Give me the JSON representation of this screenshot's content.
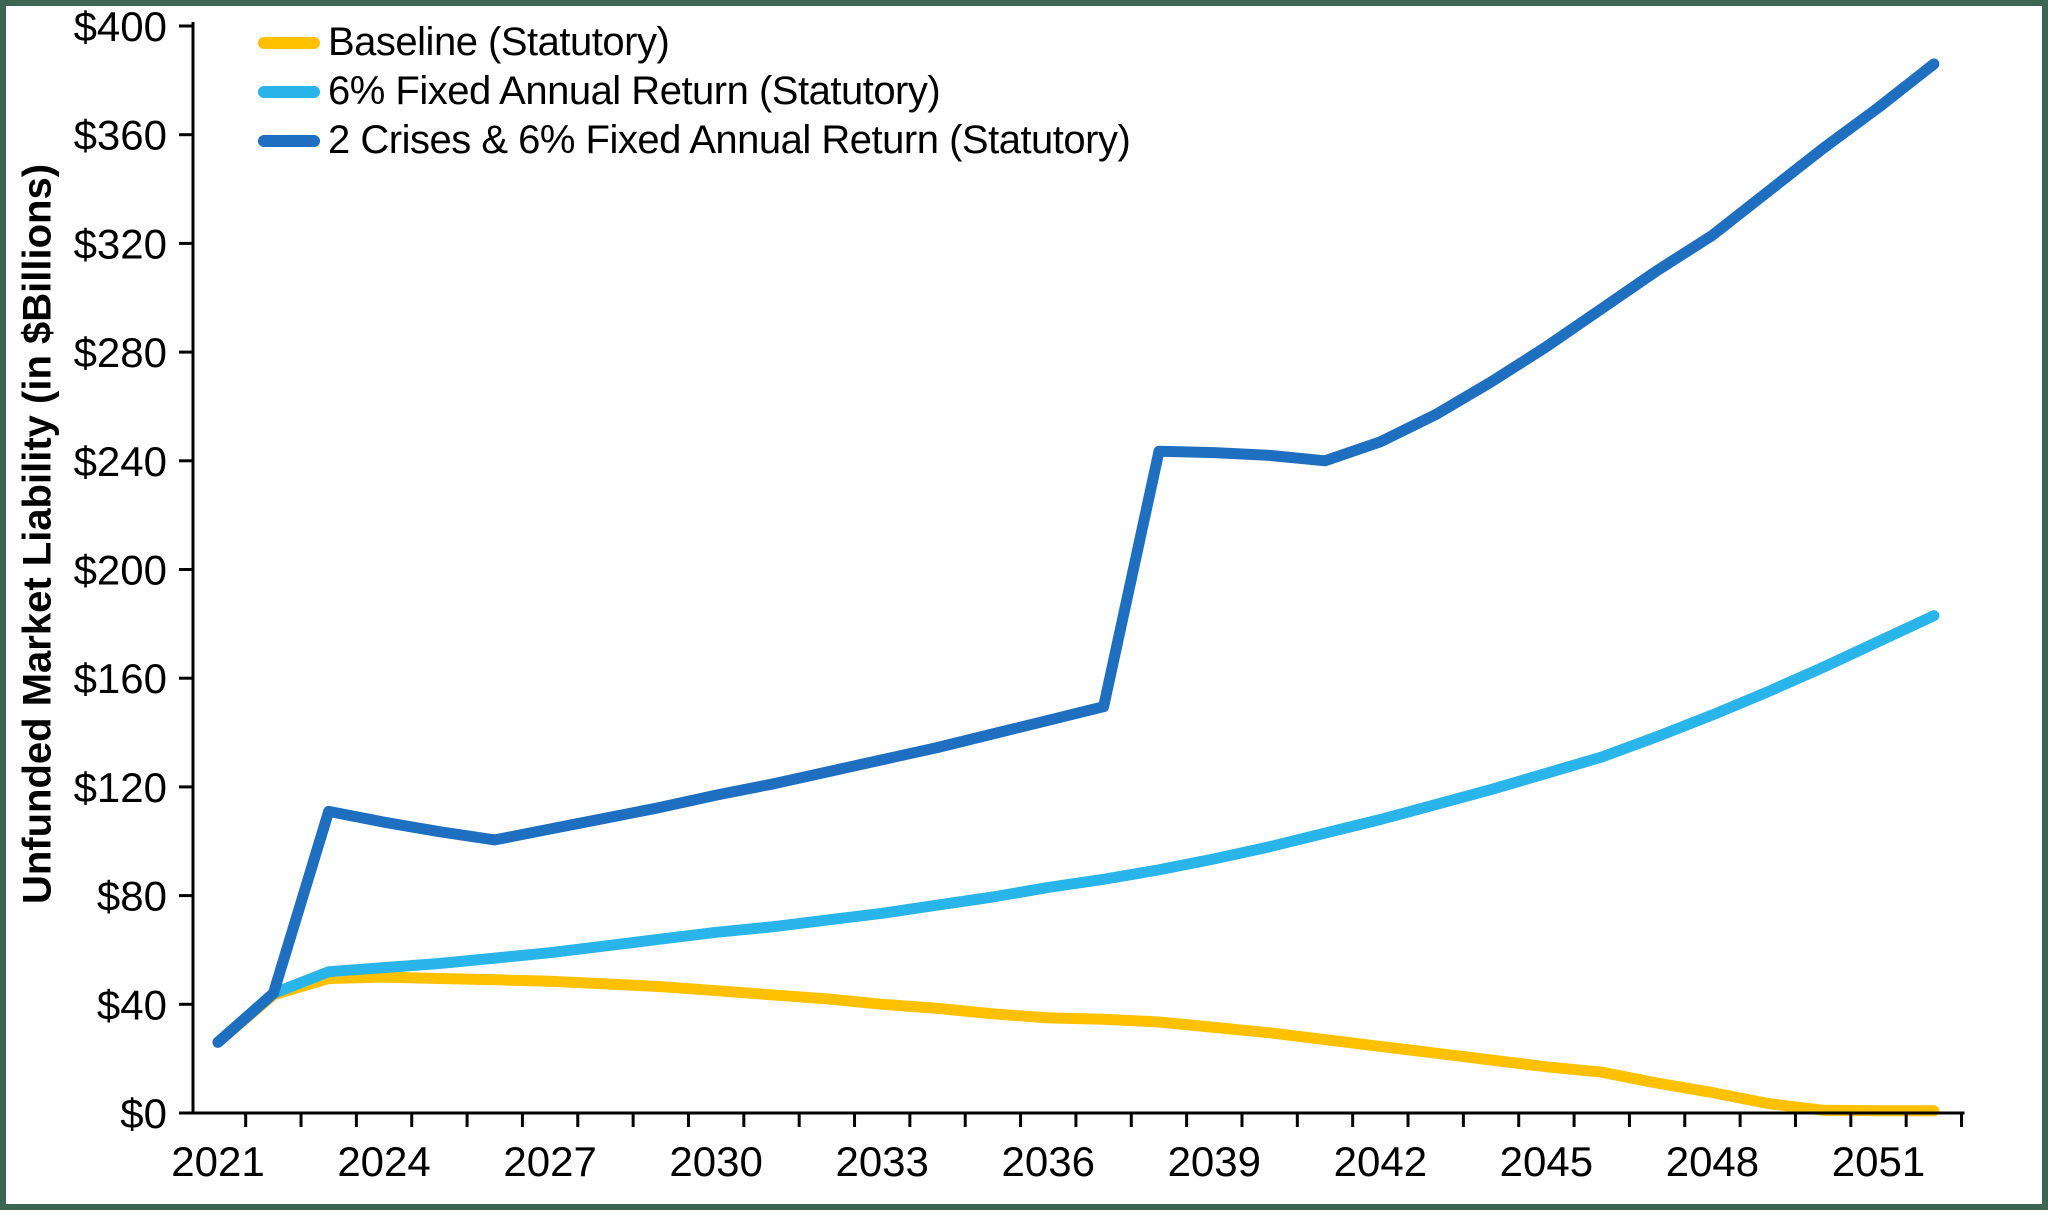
{
  "frame": {
    "border_color": "#3C6553",
    "background": "#FFFFFF"
  },
  "chart_data": {
    "type": "line",
    "title": "",
    "xlabel": "",
    "ylabel": "Unfunded Market Liability (in $Billions)",
    "ylim": [
      0,
      400
    ],
    "y_tick_step": 40,
    "y_tick_values": [
      0,
      40,
      80,
      120,
      160,
      200,
      240,
      280,
      320,
      360,
      400
    ],
    "y_tick_labels": [
      "$0",
      "$40",
      "$80",
      "$120",
      "$160",
      "$200",
      "$240",
      "$280",
      "$320",
      "$360",
      "$400"
    ],
    "x": [
      2021,
      2022,
      2023,
      2024,
      2025,
      2026,
      2027,
      2028,
      2029,
      2030,
      2031,
      2032,
      2033,
      2034,
      2035,
      2036,
      2037,
      2038,
      2039,
      2040,
      2041,
      2042,
      2043,
      2044,
      2045,
      2046,
      2047,
      2048,
      2049,
      2050,
      2051,
      2052
    ],
    "x_tick_years": [
      2021,
      2024,
      2027,
      2030,
      2033,
      2036,
      2039,
      2042,
      2045,
      2048,
      2051
    ],
    "x_tick_labels": [
      "2021",
      "2024",
      "2027",
      "2030",
      "2033",
      "2036",
      "2039",
      "2042",
      "2045",
      "2048",
      "2051"
    ],
    "grid": false,
    "legend_position": "top-left",
    "axis_color": "#000000",
    "series": [
      {
        "name": "Baseline (Statutory)",
        "color": "#FFC000",
        "values": [
          26,
          43.5,
          49.5,
          50,
          49.5,
          49,
          48.5,
          47.5,
          46.5,
          45,
          43.5,
          42,
          40,
          38.5,
          36.5,
          35,
          34.5,
          33.5,
          31.5,
          29.5,
          27,
          24.5,
          22,
          19.5,
          17,
          15,
          11,
          7.5,
          3.5,
          1,
          0.8,
          0.8
        ]
      },
      {
        "name": "6% Fixed Annual Return (Statutory)",
        "color": "#29B5EA",
        "values": [
          26,
          44,
          52,
          53.5,
          55,
          57,
          59,
          61.5,
          64,
          66.5,
          68.5,
          71,
          73.5,
          76.5,
          79.5,
          83,
          86,
          89.5,
          93.5,
          98,
          103,
          108,
          113.5,
          119,
          125,
          131,
          138.5,
          146.5,
          155,
          164,
          173.5,
          183
        ]
      },
      {
        "name": "2 Crises & 6% Fixed Annual Return (Statutory)",
        "color": "#1E6FC0",
        "values": [
          26,
          44,
          111,
          107,
          103.5,
          100.5,
          104.5,
          108.5,
          112.5,
          117,
          121,
          125.5,
          130,
          134.5,
          139.5,
          144.5,
          149.5,
          243.5,
          243,
          242,
          240,
          247,
          257,
          269,
          282,
          296,
          310,
          323,
          339,
          355,
          370,
          386
        ]
      }
    ]
  }
}
